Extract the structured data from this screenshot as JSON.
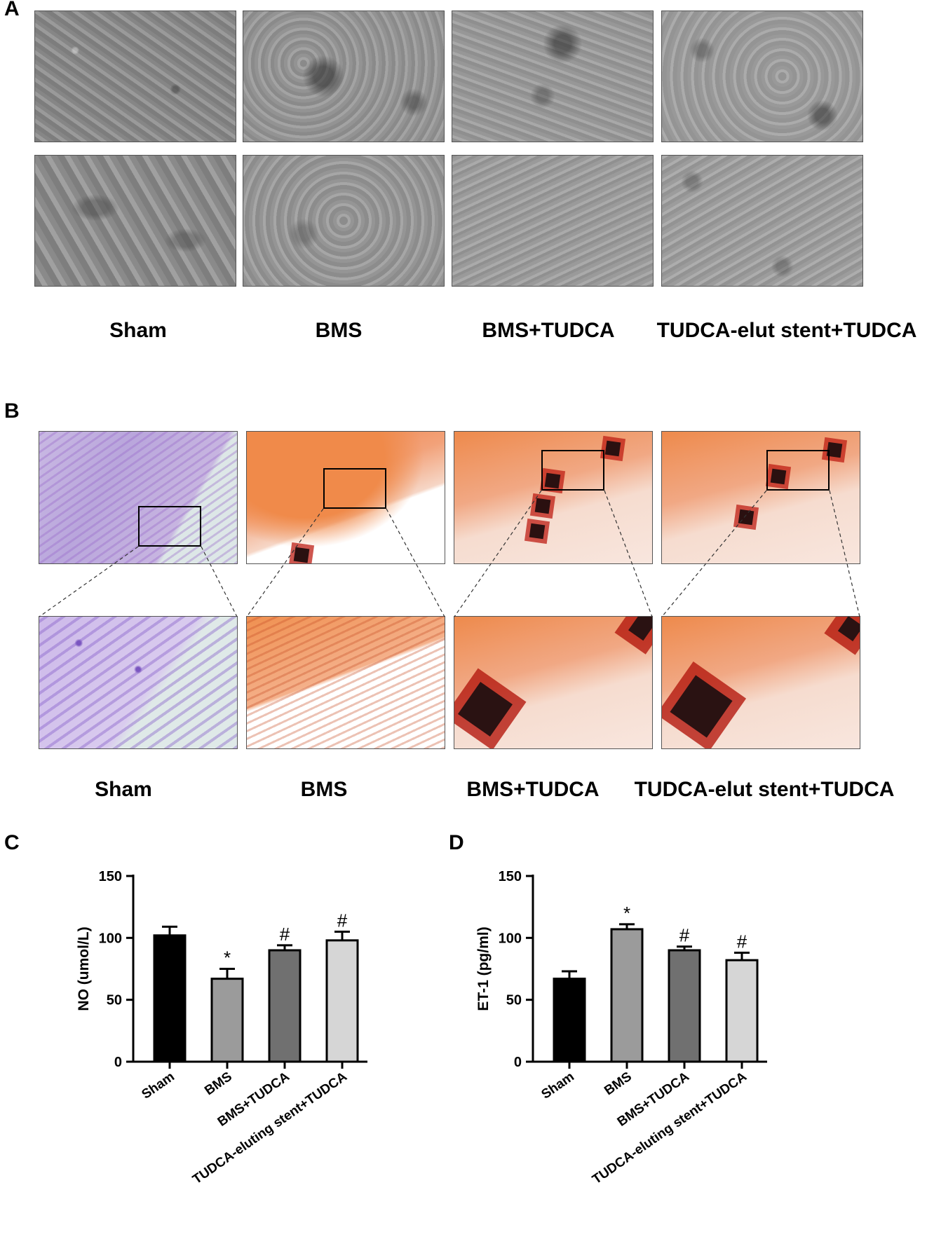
{
  "panels": {
    "a": {
      "letter": "A",
      "labels": [
        "Sham",
        "BMS",
        "BMS+TUDCA",
        "TUDCA-elut stent+TUDCA"
      ]
    },
    "b": {
      "letter": "B",
      "labels": [
        "Sham",
        "BMS",
        "BMS+TUDCA",
        "TUDCA-elut stent+TUDCA"
      ]
    },
    "c": {
      "letter": "C"
    },
    "d": {
      "letter": "D"
    }
  },
  "chart_data": [
    {
      "type": "bar",
      "categories": [
        "Sham",
        "BMS",
        "BMS+TUDCA",
        "TUDCA-eluting stent+TUDCA"
      ],
      "values": [
        102,
        67,
        90,
        98
      ],
      "errors": [
        7,
        8,
        4,
        7
      ],
      "annotations": [
        "",
        "*",
        "#",
        "#"
      ],
      "bar_colors": [
        "#000000",
        "#9b9b9b",
        "#707070",
        "#d6d6d6"
      ],
      "ylabel": "NO (umol/L)",
      "ylim": [
        0,
        150
      ],
      "yticks": [
        0,
        50,
        100,
        150
      ],
      "tick_labels": [
        "0",
        "50",
        "100",
        "150"
      ]
    },
    {
      "type": "bar",
      "categories": [
        "Sham",
        "BMS",
        "BMS+TUDCA",
        "TUDCA-eluting stent+TUDCA"
      ],
      "values": [
        67,
        107,
        90,
        82
      ],
      "errors": [
        6,
        4,
        3,
        6
      ],
      "annotations": [
        "",
        "*",
        "#",
        "#"
      ],
      "bar_colors": [
        "#000000",
        "#9b9b9b",
        "#707070",
        "#d6d6d6"
      ],
      "ylabel": "ET-1 (pg/ml)",
      "ylim": [
        0,
        150
      ],
      "yticks": [
        0,
        50,
        100,
        150
      ],
      "tick_labels": [
        "0",
        "50",
        "100",
        "150"
      ]
    }
  ]
}
